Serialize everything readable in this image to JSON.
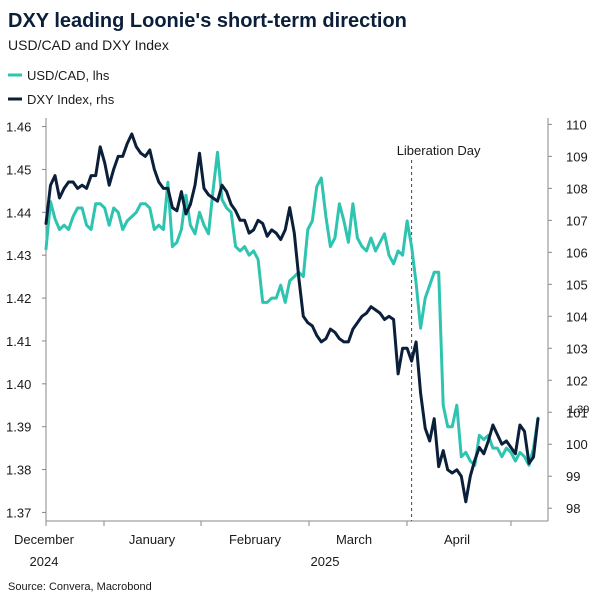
{
  "colors": {
    "usdcad": "#2ec4b0",
    "dxy": "#0b1f3a",
    "axis": "#888888",
    "annotation_line": "#444444"
  },
  "chart_data": {
    "type": "line",
    "title": "DXY leading Loonie's short-term direction",
    "subtitle": "USD/CAD and DXY Index",
    "source": "Source: Convera, Macrobond",
    "legend_placement": "top-left",
    "grid": false,
    "x_axis": {
      "months": [
        "December",
        "January",
        "February",
        "March",
        "April"
      ],
      "years": [
        "2024",
        "2025"
      ]
    },
    "y_left": {
      "range": [
        1.368,
        1.462
      ],
      "ticks": [
        "1.46",
        "1.45",
        "1.44",
        "1.43",
        "1.42",
        "1.41",
        "1.40",
        "1.39",
        "1.38",
        "1.37"
      ]
    },
    "y_right": {
      "range": [
        97.6,
        110.2
      ],
      "ticks": [
        "110",
        "109",
        "108",
        "107",
        "106",
        "105",
        "104",
        "103",
        "102",
        "101",
        "100",
        "99",
        "98"
      ]
    },
    "last_value_label": "1.39",
    "annotation": {
      "label": "Liberation Day",
      "index": 81
    },
    "series": [
      {
        "name": "USD/CAD, lhs",
        "axis": "left",
        "values": [
          1.4315,
          1.4425,
          1.4385,
          1.436,
          1.437,
          1.436,
          1.439,
          1.441,
          1.441,
          1.437,
          1.436,
          1.442,
          1.442,
          1.441,
          1.437,
          1.441,
          1.44,
          1.436,
          1.438,
          1.439,
          1.44,
          1.442,
          1.442,
          1.441,
          1.436,
          1.437,
          1.436,
          1.447,
          1.432,
          1.433,
          1.436,
          1.444,
          1.437,
          1.435,
          1.44,
          1.437,
          1.435,
          1.445,
          1.454,
          1.443,
          1.441,
          1.44,
          1.432,
          1.431,
          1.432,
          1.43,
          1.431,
          1.429,
          1.419,
          1.419,
          1.42,
          1.42,
          1.423,
          1.419,
          1.424,
          1.425,
          1.426,
          1.425,
          1.436,
          1.438,
          1.446,
          1.448,
          1.439,
          1.432,
          1.434,
          1.442,
          1.438,
          1.433,
          1.442,
          1.434,
          1.432,
          1.431,
          1.434,
          1.431,
          1.433,
          1.435,
          1.43,
          1.428,
          1.431,
          1.43,
          1.438,
          1.432,
          1.4235,
          1.413,
          1.42,
          1.423,
          1.426,
          1.426,
          1.395,
          1.39,
          1.39,
          1.395,
          1.383,
          1.384,
          1.382,
          1.381,
          1.388,
          1.387,
          1.388,
          1.385,
          1.385,
          1.383,
          1.385,
          1.384,
          1.382,
          1.384,
          1.383,
          1.381,
          1.385,
          1.392
        ]
      },
      {
        "name": "DXY Index, rhs",
        "axis": "right",
        "values": [
          106.9,
          108.1,
          108.4,
          107.7,
          108.0,
          108.2,
          108.2,
          108.0,
          108.1,
          108.0,
          108.4,
          108.4,
          109.3,
          108.8,
          108.1,
          108.6,
          109.0,
          109.0,
          109.4,
          109.7,
          109.3,
          109.1,
          109.0,
          109.2,
          108.6,
          108.2,
          108.0,
          108.0,
          107.4,
          107.3,
          107.9,
          107.2,
          107.5,
          108.1,
          109.1,
          108.0,
          107.8,
          107.7,
          107.6,
          108.1,
          107.9,
          107.5,
          107.3,
          107.0,
          107.0,
          106.6,
          106.7,
          107.0,
          106.9,
          106.5,
          106.7,
          106.6,
          106.4,
          106.7,
          107.4,
          106.6,
          105.2,
          104.0,
          103.8,
          103.7,
          103.4,
          103.2,
          103.3,
          103.6,
          103.5,
          103.3,
          103.2,
          103.2,
          103.6,
          103.8,
          104.0,
          104.1,
          104.3,
          104.2,
          104.1,
          103.9,
          104.0,
          103.9,
          102.2,
          103.0,
          103.0,
          102.6,
          103.2,
          101.6,
          100.5,
          100.1,
          100.8,
          99.3,
          99.8,
          99.2,
          99.1,
          99.2,
          99.0,
          98.2,
          99.0,
          99.5,
          99.9,
          99.7,
          100.1,
          100.6,
          100.3,
          100.0,
          100.1,
          99.9,
          99.7,
          100.6,
          100.4,
          99.4,
          99.6,
          100.8
        ]
      }
    ]
  }
}
